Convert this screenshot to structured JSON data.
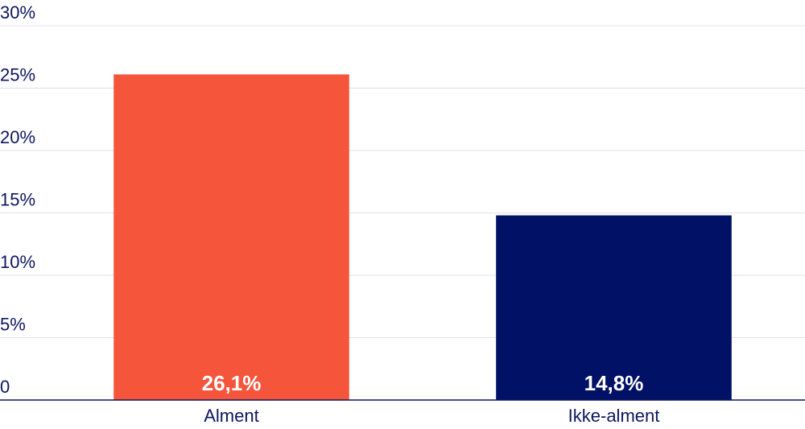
{
  "chart_data": {
    "type": "bar",
    "categories": [
      "Alment",
      "Ikke-alment"
    ],
    "values": [
      26.1,
      14.8
    ],
    "value_labels": [
      "26,1%",
      "14,8%"
    ],
    "colors": [
      "#f5553b",
      "#001166"
    ],
    "ylim": [
      0,
      30
    ],
    "yticks": [
      0,
      {
        "value": 5,
        "label": "5%"
      },
      {
        "value": 10,
        "label": "10%"
      },
      {
        "value": 15,
        "label": "15%"
      },
      {
        "value": 20,
        "label": "20%"
      },
      {
        "value": 25,
        "label": "25%"
      },
      {
        "value": 30,
        "label": "30%"
      }
    ],
    "grid": true
  }
}
